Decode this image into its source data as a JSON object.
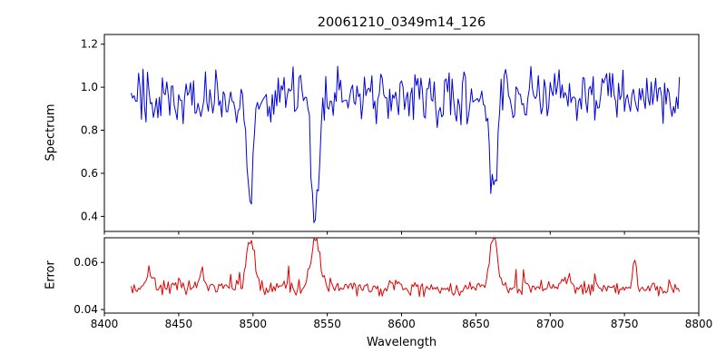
{
  "figure": {
    "title": "20061210_0349m14_126"
  },
  "chart_data": {
    "type": "line",
    "title": "20061210_0349m14_126",
    "xlabel": "Wavelength",
    "xlim": [
      8400,
      8800
    ],
    "x_ticks": [
      8400,
      8450,
      8500,
      8550,
      8600,
      8650,
      8700,
      8750,
      8800
    ],
    "x_tick_labels": [
      "8400",
      "8450",
      "8500",
      "8550",
      "8600",
      "8650",
      "8700",
      "8750",
      "8800"
    ],
    "grid": false,
    "legend": "none",
    "panels": [
      {
        "name": "spectrum",
        "ylabel": "Spectrum",
        "ylim": [
          0.33,
          1.245
        ],
        "y_ticks": [
          0.4,
          0.6,
          0.8,
          1.0,
          1.2
        ],
        "y_tick_labels": [
          "0.4",
          "0.6",
          "0.8",
          "1.0",
          "1.2"
        ],
        "line_color": "#0000dd",
        "series": {
          "x_start": 8418,
          "x_end": 8787,
          "x_step": 1,
          "continuum": 0.96,
          "noise_amplitude": 0.15,
          "absorption_lines": [
            {
              "center": 8498,
              "depth": 0.5,
              "sigma": 2.2
            },
            {
              "center": 8542,
              "depth": 0.59,
              "sigma": 2.6
            },
            {
              "center": 8662,
              "depth": 0.47,
              "sigma": 2.2
            }
          ]
        }
      },
      {
        "name": "error",
        "ylabel": "Error",
        "ylim": [
          0.0385,
          0.0705
        ],
        "y_ticks": [
          0.04,
          0.06
        ],
        "y_tick_labels": [
          "0.04",
          "0.06"
        ],
        "line_color": "#e00000",
        "series": {
          "x_start": 8418,
          "x_end": 8787,
          "x_step": 1,
          "baseline": 0.049,
          "noise_amplitude": 0.004,
          "spike_chance": 0.05,
          "spike_amplitude": 0.008,
          "peaks": [
            {
              "center": 8498,
              "height": 0.02,
              "sigma": 2.5
            },
            {
              "center": 8542,
              "height": 0.023,
              "sigma": 3.0
            },
            {
              "center": 8662,
              "height": 0.023,
              "sigma": 2.5
            },
            {
              "center": 8430,
              "height": 0.007,
              "sigma": 2.0
            },
            {
              "center": 8466,
              "height": 0.006,
              "sigma": 2.0
            },
            {
              "center": 8711,
              "height": 0.005,
              "sigma": 2.0
            },
            {
              "center": 8757,
              "height": 0.013,
              "sigma": 1.3
            }
          ]
        }
      }
    ]
  }
}
